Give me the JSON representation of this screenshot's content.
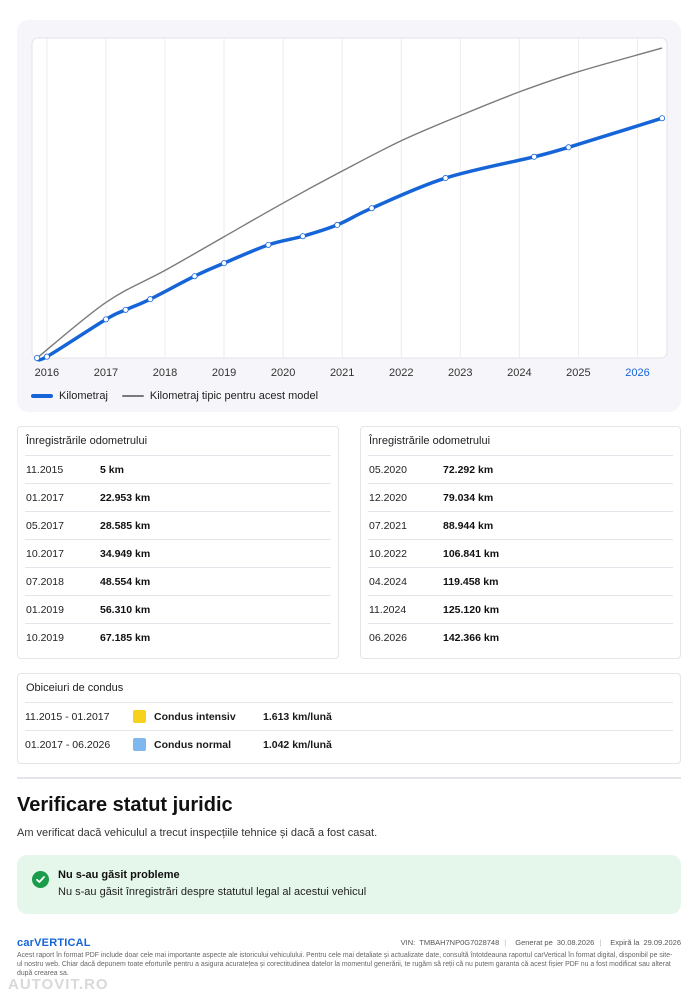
{
  "chart_data": {
    "type": "line",
    "x_ticks": [
      "2016",
      "2017",
      "2018",
      "2019",
      "2020",
      "2021",
      "2022",
      "2023",
      "2024",
      "2025",
      "2026"
    ],
    "highlight_tick": "2026",
    "ylim": [
      0,
      190000
    ],
    "grid": "vertical",
    "legend_position": "bottom-left",
    "series": [
      {
        "name": "Kilometraj",
        "color": "#1565d8",
        "style": "solid-with-markers",
        "points": [
          {
            "date": "11.2015",
            "km": 5
          },
          {
            "date": "01.2016",
            "km": 800
          },
          {
            "date": "01.2017",
            "km": 22953
          },
          {
            "date": "05.2017",
            "km": 28585
          },
          {
            "date": "10.2017",
            "km": 34949
          },
          {
            "date": "07.2018",
            "km": 48554
          },
          {
            "date": "01.2019",
            "km": 56310
          },
          {
            "date": "10.2019",
            "km": 67185
          },
          {
            "date": "05.2020",
            "km": 72292
          },
          {
            "date": "12.2020",
            "km": 79034
          },
          {
            "date": "07.2021",
            "km": 88944
          },
          {
            "date": "10.2022",
            "km": 106841
          },
          {
            "date": "04.2024",
            "km": 119458
          },
          {
            "date": "11.2024",
            "km": 125120
          },
          {
            "date": "06.2026",
            "km": 142366
          }
        ]
      },
      {
        "name": "Kilometraj tipic pentru acest model",
        "color": "#7a7a7a",
        "style": "solid",
        "points": [
          {
            "date": "11.2015",
            "km": 0
          },
          {
            "date": "01.2017",
            "km": 33000
          },
          {
            "date": "01.2018",
            "km": 52000
          },
          {
            "date": "01.2019",
            "km": 72000
          },
          {
            "date": "01.2020",
            "km": 92000
          },
          {
            "date": "01.2021",
            "km": 111000
          },
          {
            "date": "01.2022",
            "km": 129000
          },
          {
            "date": "01.2023",
            "km": 144000
          },
          {
            "date": "01.2024",
            "km": 158000
          },
          {
            "date": "01.2025",
            "km": 170000
          },
          {
            "date": "06.2026",
            "km": 184000
          }
        ]
      }
    ]
  },
  "legend": {
    "series1": "Kilometraj",
    "series2": "Kilometraj tipic pentru acest model"
  },
  "odometer_left": {
    "title": "Înregistrările odometrului",
    "rows": [
      {
        "date": "11.2015",
        "km": "5 km"
      },
      {
        "date": "01.2017",
        "km": "22.953 km"
      },
      {
        "date": "05.2017",
        "km": "28.585 km"
      },
      {
        "date": "10.2017",
        "km": "34.949 km"
      },
      {
        "date": "07.2018",
        "km": "48.554 km"
      },
      {
        "date": "01.2019",
        "km": "56.310 km"
      },
      {
        "date": "10.2019",
        "km": "67.185 km"
      }
    ]
  },
  "odometer_right": {
    "title": "Înregistrările odometrului",
    "rows": [
      {
        "date": "05.2020",
        "km": "72.292 km"
      },
      {
        "date": "12.2020",
        "km": "79.034 km"
      },
      {
        "date": "07.2021",
        "km": "88.944 km"
      },
      {
        "date": "10.2022",
        "km": "106.841 km"
      },
      {
        "date": "04.2024",
        "km": "119.458 km"
      },
      {
        "date": "11.2024",
        "km": "125.120 km"
      },
      {
        "date": "06.2026",
        "km": "142.366 km"
      }
    ]
  },
  "driving": {
    "title": "Obiceiuri de condus",
    "rows": [
      {
        "period": "11.2015 - 01.2017",
        "type": "Condus intensiv",
        "rate": "1.613 km/lună",
        "color": "#f7d21c"
      },
      {
        "period": "01.2017 - 06.2026",
        "type": "Condus normal",
        "rate": "1.042 km/lună",
        "color": "#7fb8ee"
      }
    ]
  },
  "legal": {
    "title": "Verificare statut juridic",
    "subtitle": "Am verificat dacă vehiculul a trecut inspecțiile tehnice și dacă a fost casat.",
    "status_title": "Nu s-au găsit probleme",
    "status_text": "Nu s-au găsit înregistrări despre statutul legal al acestui vehicul",
    "status_color": "#1a9c4a"
  },
  "footer": {
    "logo": "carVERTICAL",
    "vin_label": "VIN:",
    "vin": "TMBAH7NP0G7028748",
    "generated_label": "Generat pe",
    "generated": "30.08.2026",
    "expires_label": "Expiră la",
    "expires": "29.09.2026",
    "note": "Acest raport în format PDF include doar cele mai importante aspecte ale istoricului vehiculului. Pentru cele mai detaliate și actualizate date, consultă întotdeauna raportul carVertical în format digital, disponibil pe site-ul nostru web. Chiar dacă depunem toate eforturile pentru a asigura acuratețea și corectitudinea datelor la momentul generării, te rugăm să reții că nu putem garanta că acest fișier PDF nu a fost modificat sau alterat după crearea sa.",
    "watermark": "AUTOVIT.RO"
  }
}
